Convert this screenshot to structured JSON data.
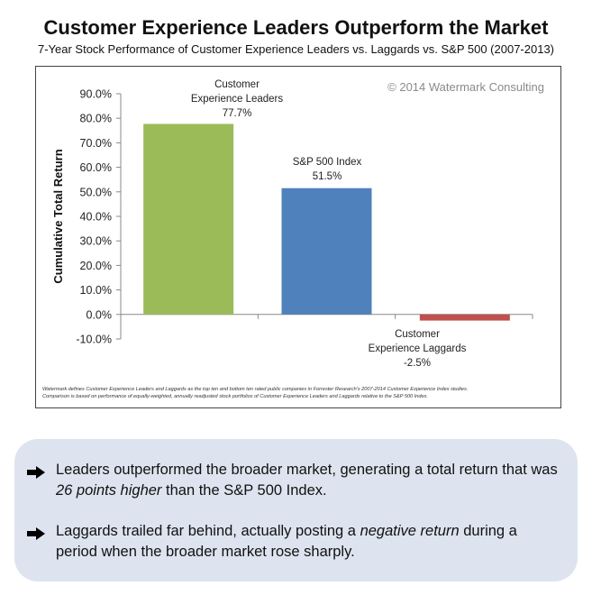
{
  "title": "Customer Experience Leaders Outperform the Market",
  "subtitle": "7-Year Stock Performance of Customer Experience Leaders vs. Laggards vs. S&P 500 (2007-2013)",
  "copyright": "© 2014 Watermark Consulting",
  "footnote_line1": "Watermark defines Customer Experience Leaders and Laggards as the top ten and bottom ten rated public companies in Forrester Research's 2007-2014 Customer Experience Index studies.",
  "footnote_line2": "Comparison is based on performance of equally-weighted, annually readjusted stock portfolios of Customer Experience Leaders and Laggards relative to the S&P 500 Index.",
  "chart_data": {
    "type": "bar",
    "title": "Customer Experience Leaders Outperform the Market",
    "subtitle": "7-Year Stock Performance of Customer Experience Leaders vs. Laggards vs. S&P 500 (2007-2013)",
    "ylabel": "Cumulative Total Return",
    "xlabel": "",
    "ylim": [
      -10,
      90
    ],
    "yticks": [
      90,
      80,
      70,
      60,
      50,
      40,
      30,
      20,
      10,
      0,
      -10
    ],
    "ytick_labels": [
      "90.0%",
      "80.0%",
      "70.0%",
      "60.0%",
      "50.0%",
      "40.0%",
      "30.0%",
      "20.0%",
      "10.0%",
      "0.0%",
      "-10.0%"
    ],
    "grid": false,
    "categories": [
      "Customer Experience Leaders",
      "S&P 500 Index",
      "Customer Experience Laggards"
    ],
    "values": [
      77.7,
      51.5,
      -2.5
    ],
    "bar_labels": [
      [
        "Customer",
        "Experience Leaders",
        "77.7%"
      ],
      [
        "S&P 500 Index",
        "51.5%"
      ],
      [
        "Customer",
        "Experience Laggards",
        "-2.5%"
      ]
    ],
    "colors": [
      "#9bbb59",
      "#4f81bd",
      "#c0504d"
    ]
  },
  "callout": {
    "bullet1": {
      "before": "Leaders outperformed the broader market, generating a total return that was ",
      "emphasis": "26 points higher",
      "after": " than the S&P 500 Index."
    },
    "bullet2": {
      "before": "Laggards trailed far behind, actually posting a ",
      "emphasis": "negative return",
      "after": " during a period when the broader market rose sharply."
    }
  }
}
